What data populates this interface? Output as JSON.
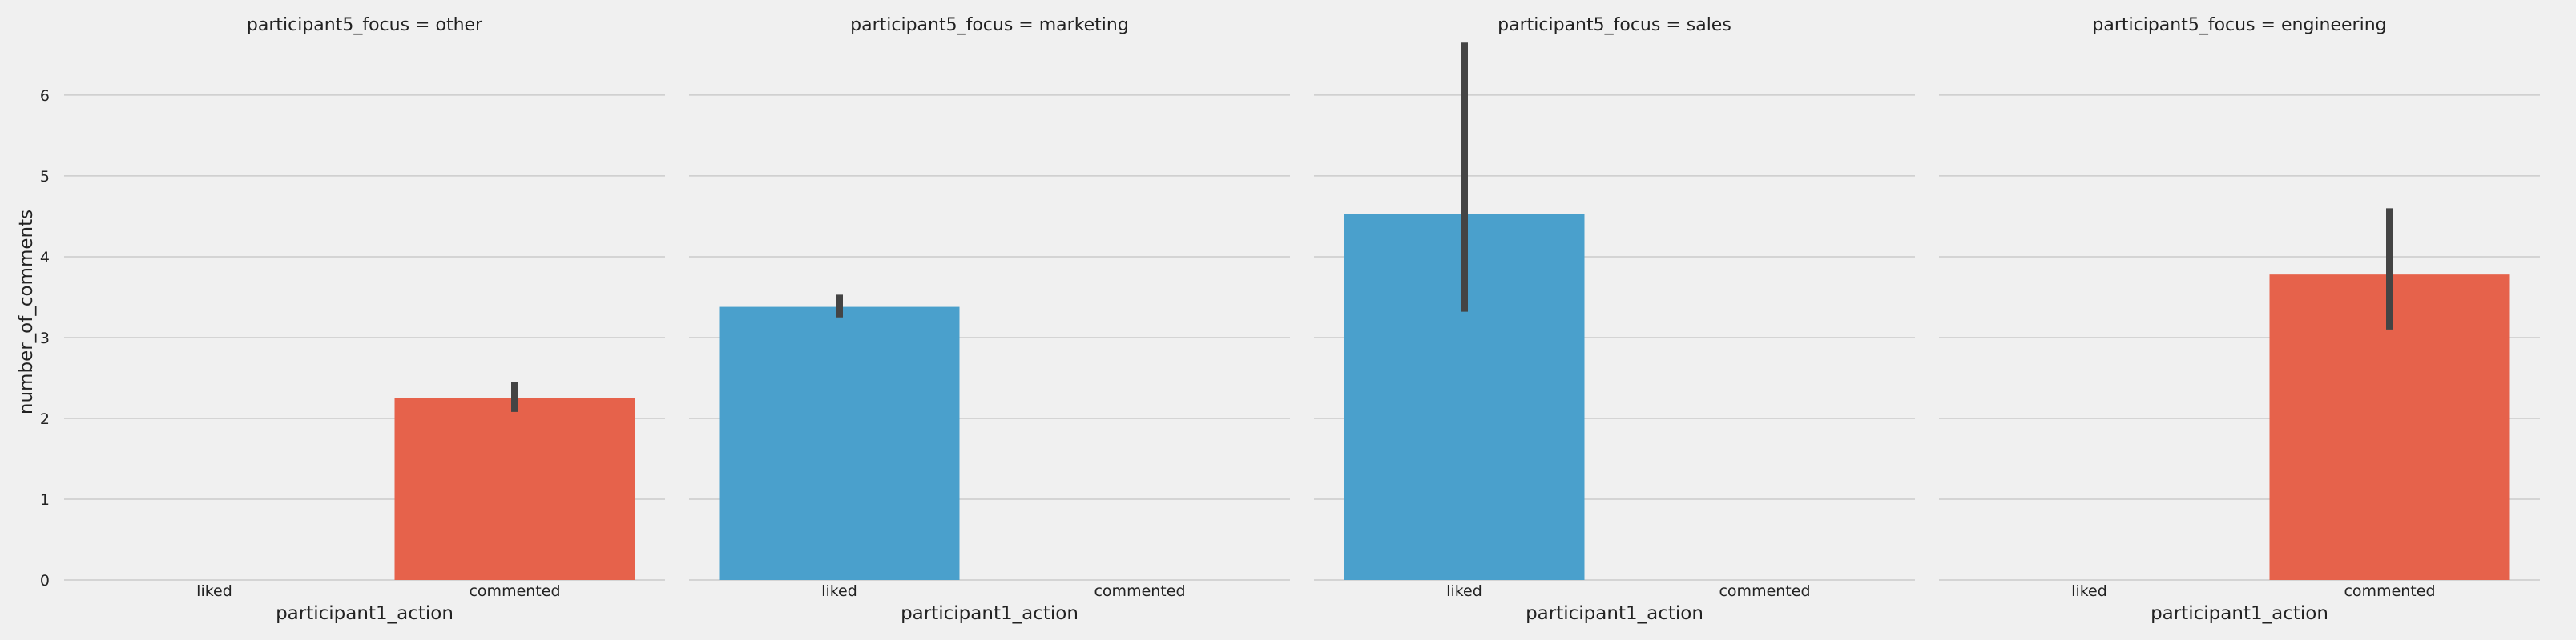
{
  "chart_data": {
    "type": "bar",
    "ylabel": "number_of_comments",
    "xlabel": "participant1_action",
    "categories": [
      "liked",
      "commented"
    ],
    "ylim": [
      0,
      6.9
    ],
    "yticks": [
      0,
      1,
      2,
      3,
      4,
      5,
      6
    ],
    "grid": "horizontal",
    "colors": {
      "liked": "#4aa0cc",
      "commented": "#e6624b",
      "error_bar": "#444444",
      "grid": "#cbcbcb",
      "background": "#f0f0f0"
    },
    "panels": [
      {
        "title": "participant5_focus = other",
        "bars": [
          {
            "category": "commented",
            "value": 2.25,
            "err_low": 2.08,
            "err_high": 2.45
          }
        ]
      },
      {
        "title": "participant5_focus = marketing",
        "bars": [
          {
            "category": "liked",
            "value": 3.38,
            "err_low": 3.25,
            "err_high": 3.53
          }
        ]
      },
      {
        "title": "participant5_focus = sales",
        "bars": [
          {
            "category": "liked",
            "value": 4.53,
            "err_low": 3.32,
            "err_high": 6.65
          }
        ]
      },
      {
        "title": "participant5_focus = engineering",
        "bars": [
          {
            "category": "commented",
            "value": 3.78,
            "err_low": 3.1,
            "err_high": 4.6
          }
        ]
      }
    ]
  }
}
